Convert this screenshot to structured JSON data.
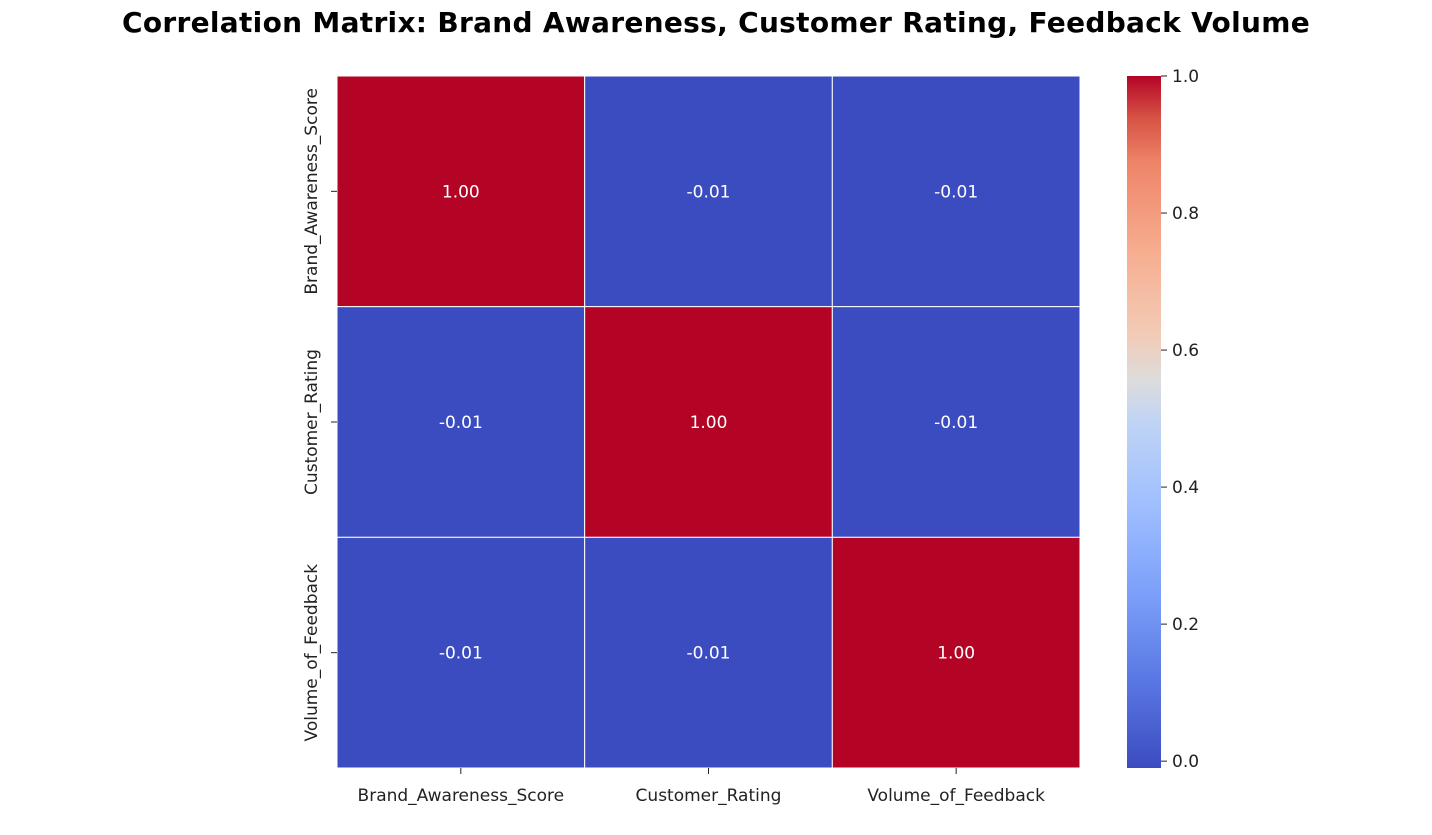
{
  "chart_data": {
    "type": "heatmap",
    "title": "Correlation Matrix: Brand Awareness, Customer Rating, Feedback Volume",
    "x_categories": [
      "Brand_Awareness_Score",
      "Customer_Rating",
      "Volume_of_Feedback"
    ],
    "y_categories": [
      "Brand_Awareness_Score",
      "Customer_Rating",
      "Volume_of_Feedback"
    ],
    "values": [
      [
        1.0,
        -0.01,
        -0.01
      ],
      [
        -0.01,
        1.0,
        -0.01
      ],
      [
        -0.01,
        -0.01,
        1.0
      ]
    ],
    "annotations": [
      [
        "1.00",
        "-0.01",
        "-0.01"
      ],
      [
        "-0.01",
        "1.00",
        "-0.01"
      ],
      [
        "-0.01",
        "-0.01",
        "1.00"
      ]
    ],
    "colormap": "coolwarm",
    "colorbar": {
      "range": [
        -0.01,
        1.0
      ],
      "ticks": [
        0.0,
        0.2,
        0.4,
        0.6,
        0.8,
        1.0
      ],
      "tick_labels": [
        "0.0",
        "0.2",
        "0.4",
        "0.6",
        "0.8",
        "1.0"
      ]
    },
    "colors": {
      "low": "#3b4cc0",
      "mid": "#dddcdc",
      "high": "#b40426",
      "cell_border": "#ffffff",
      "annotation_text": "#ffffff"
    }
  }
}
